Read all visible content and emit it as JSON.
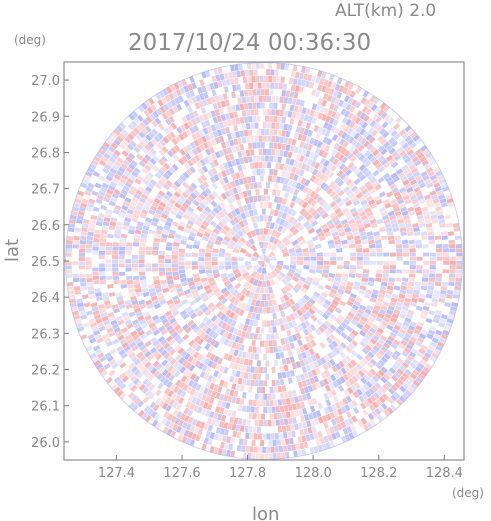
{
  "chart_data": {
    "type": "heatmap",
    "title": "2017/10/24 00:36:30",
    "altitude_label": "ALT(km) 2.0",
    "xlabel": "lon",
    "ylabel": "lat",
    "x_unit": "(deg)",
    "y_unit": "(deg)",
    "xlim": [
      127.24,
      128.46
    ],
    "ylim": [
      25.95,
      27.05
    ],
    "x_ticks": [
      "127.4",
      "127.6",
      "127.8",
      "128.0",
      "128.2",
      "128.4"
    ],
    "y_ticks": [
      "26.0",
      "26.1",
      "26.2",
      "26.3",
      "26.4",
      "26.5",
      "26.6",
      "26.7",
      "26.8",
      "26.9",
      "27.0"
    ],
    "radar_center": {
      "lon": 127.85,
      "lat": 26.5
    },
    "radar_radius_deg_lat": 0.55,
    "colors": {
      "positive": "#f4a0a0",
      "negative": "#a8b0f4",
      "neutral": "#ffffff",
      "frame": "#7a7a7a",
      "text": "#8a8a8a"
    }
  }
}
